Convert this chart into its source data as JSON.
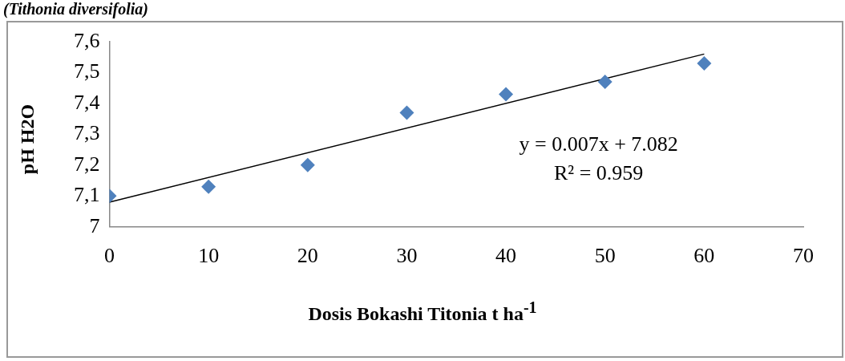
{
  "chart_data": {
    "type": "scatter",
    "title": "(Tithonia diversifolia)",
    "xlabel": "Dosis Bokashi Titonia t ha$^{-1}$",
    "ylabel": "pH H2O",
    "series": [
      {
        "type": "scatter",
        "color": "#4f81bd",
        "x": [
          0,
          10,
          20,
          30,
          40,
          50,
          60
        ],
        "values": [
          7.1,
          7.13,
          7.2,
          7.37,
          7.43,
          7.47,
          7.53
        ],
        "marker": "diamond"
      },
      {
        "type": "line",
        "color": "#000000",
        "x": [
          0,
          60
        ],
        "values": [
          7.08,
          7.56
        ],
        "marker": "none",
        "line_style": "solid"
      }
    ],
    "xlim": [
      0,
      70
    ],
    "xticks": [
      0,
      10,
      20,
      30,
      40,
      50,
      60,
      70
    ],
    "ylim": [
      7,
      7.6
    ],
    "yticks": [
      {
        "value": 7,
        "label": "7"
      },
      {
        "value": 7.1,
        "label": "7,1"
      },
      {
        "value": 7.2,
        "label": "7,2"
      },
      {
        "value": 7.3,
        "label": "7,3"
      },
      {
        "value": 7.4,
        "label": "7,4"
      },
      {
        "value": 7.5,
        "label": "7,5"
      },
      {
        "value": 7.6,
        "label": "7,6"
      }
    ],
    "annotations": [
      "y = 0.007x + 7.082",
      "R² = 0.959"
    ],
    "grid": false,
    "legend": false
  }
}
